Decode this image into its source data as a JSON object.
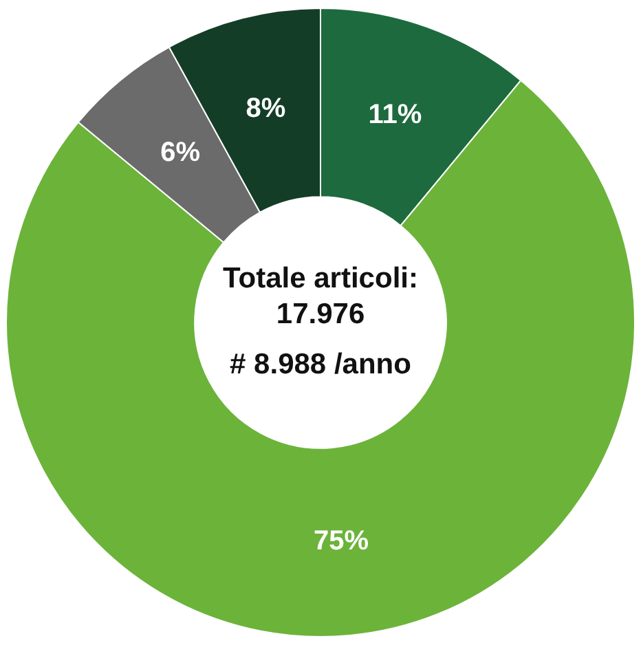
{
  "chart_data": {
    "type": "donut",
    "categories": [
      null,
      null,
      null,
      null
    ],
    "values": [
      11,
      75,
      6,
      8
    ],
    "colors": [
      "#1d6a3e",
      "#6cb33a",
      "#6b6b6b",
      "#133d27"
    ],
    "value_labels": [
      "11%",
      "75%",
      "6%",
      "8%"
    ],
    "annotations": [
      "Totale articoli:",
      "17.976",
      "# 8.988 /anno"
    ]
  }
}
